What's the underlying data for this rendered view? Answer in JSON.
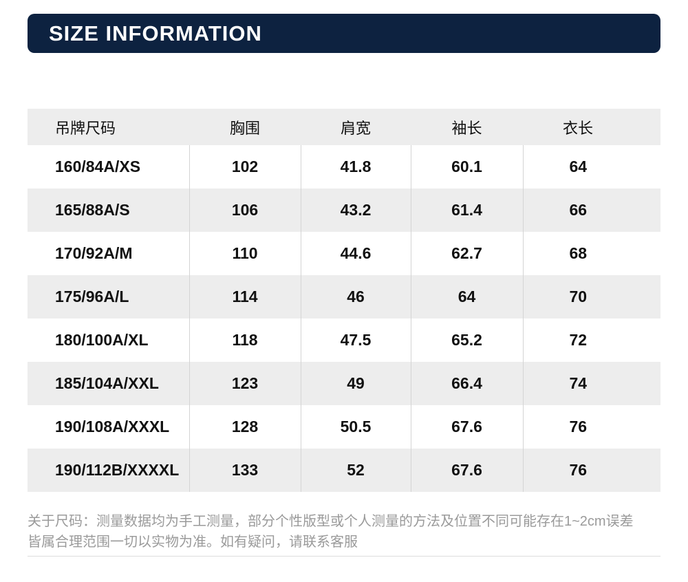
{
  "banner": {
    "title": "SIZE INFORMATION"
  },
  "size_table": {
    "columns": [
      "吊牌尺码",
      "胸围",
      "肩宽",
      "袖长",
      "衣长"
    ],
    "rows": [
      [
        "160/84A/XS",
        "102",
        "41.8",
        "60.1",
        "64"
      ],
      [
        "165/88A/S",
        "106",
        "43.2",
        "61.4",
        "66"
      ],
      [
        "170/92A/M",
        "110",
        "44.6",
        "62.7",
        "68"
      ],
      [
        "175/96A/L",
        "114",
        "46",
        "64",
        "70"
      ],
      [
        "180/100A/XL",
        "118",
        "47.5",
        "65.2",
        "72"
      ],
      [
        "185/104A/XXL",
        "123",
        "49",
        "66.4",
        "74"
      ],
      [
        "190/108A/XXXL",
        "128",
        "50.5",
        "67.6",
        "76"
      ],
      [
        "190/112B/XXXXL",
        "133",
        "52",
        "67.6",
        "76"
      ]
    ]
  },
  "footnote": {
    "line1": "关于尺码：测量数据均为手工测量，部分个性版型或个人测量的方法及位置不同可能存在1~2cm误差",
    "line2": "皆属合理范围一切以实物为准。如有疑问，请联系客服"
  },
  "colors": {
    "banner_bg": "#0d2240",
    "banner_text": "#ffffff",
    "row_shade": "#ededed",
    "column_separator": "#d4d4d4",
    "footnote_text": "#9a9a9a",
    "divider": "#dcdcdc"
  }
}
